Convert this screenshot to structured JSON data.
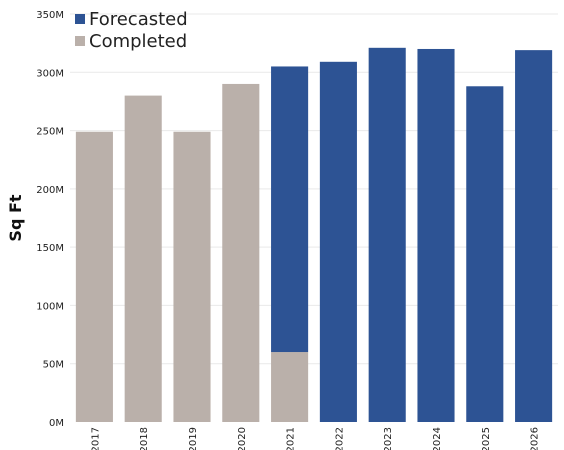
{
  "chart_data": {
    "type": "bar",
    "stacked": true,
    "categories": [
      "2017",
      "2018",
      "2019",
      "2020",
      "2021",
      "2022",
      "2023",
      "2024",
      "2025",
      "2026"
    ],
    "series": [
      {
        "name": "Completed",
        "color": "#bab0aa",
        "values": [
          249,
          280,
          249,
          290,
          60,
          0,
          0,
          0,
          0,
          0
        ]
      },
      {
        "name": "Forecasted",
        "color": "#2d5394",
        "values": [
          0,
          0,
          0,
          0,
          245,
          309,
          321,
          320,
          288,
          319
        ]
      }
    ],
    "value_unit": "M sq ft",
    "ylabel": "Sq Ft",
    "ylim": [
      0,
      350
    ],
    "yticks": [
      0,
      50,
      100,
      150,
      200,
      250,
      300,
      350
    ],
    "ytick_labels": [
      "0M",
      "50M",
      "100M",
      "150M",
      "200M",
      "250M",
      "300M",
      "350M"
    ],
    "legend": {
      "position": "top-left",
      "entries": [
        {
          "label": "Forecasted",
          "color": "#2d5394"
        },
        {
          "label": "Completed",
          "color": "#bab0aa"
        }
      ]
    },
    "grid": true
  }
}
